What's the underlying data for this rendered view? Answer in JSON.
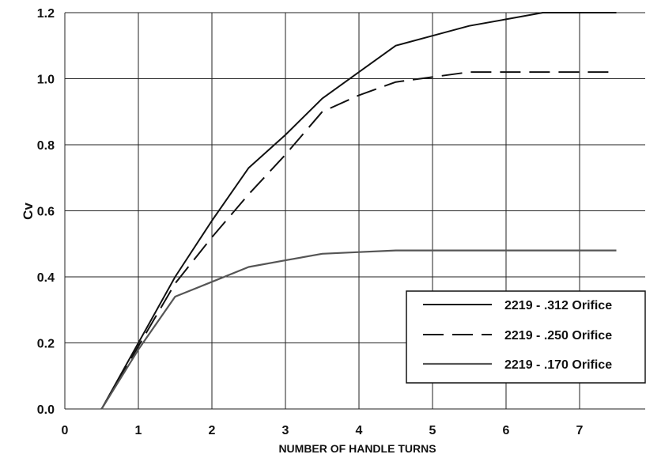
{
  "chart_data": {
    "type": "line",
    "title": "",
    "xlabel": "NUMBER OF HANDLE TURNS",
    "ylabel": "Cv",
    "xlim": [
      0,
      8
    ],
    "ylim": [
      0,
      1.2
    ],
    "x_ticks": [
      "0",
      "1",
      "2",
      "3",
      "4",
      "5",
      "6",
      "7"
    ],
    "y_ticks": [
      "0.0",
      "0.2",
      "0.4",
      "0.6",
      "0.8",
      "1.0",
      "1.2"
    ],
    "grid": true,
    "legend_position": "bottom-right",
    "series": [
      {
        "name": "2219 - .312 Orifice",
        "style": "solid",
        "color": "#111111",
        "x": [
          0.5,
          1,
          1.5,
          2,
          2.5,
          3,
          3.5,
          4,
          4.5,
          5,
          5.5,
          6,
          6.5,
          7,
          7.5
        ],
        "y": [
          0.0,
          0.2,
          0.4,
          0.57,
          0.73,
          0.83,
          0.94,
          1.02,
          1.1,
          1.13,
          1.16,
          1.18,
          1.2,
          1.2,
          1.2
        ]
      },
      {
        "name": "2219 - .250 Orifice",
        "style": "dashed",
        "color": "#111111",
        "x": [
          0.5,
          1,
          1.5,
          2,
          2.5,
          3,
          3.5,
          4,
          4.5,
          5,
          5.5,
          6,
          6.5,
          7,
          7.5
        ],
        "y": [
          0.0,
          0.19,
          0.38,
          0.52,
          0.65,
          0.77,
          0.9,
          0.95,
          0.99,
          1.005,
          1.02,
          1.02,
          1.02,
          1.02,
          1.02
        ]
      },
      {
        "name": "2219 - .170 Orifice",
        "style": "thin",
        "color": "#555555",
        "x": [
          0.5,
          1,
          1.5,
          2,
          2.5,
          3,
          3.5,
          4,
          4.5,
          5,
          5.5,
          6,
          6.5,
          7,
          7.5
        ],
        "y": [
          0.0,
          0.18,
          0.34,
          0.385,
          0.43,
          0.45,
          0.47,
          0.475,
          0.48,
          0.48,
          0.48,
          0.48,
          0.48,
          0.48,
          0.48
        ]
      }
    ]
  }
}
